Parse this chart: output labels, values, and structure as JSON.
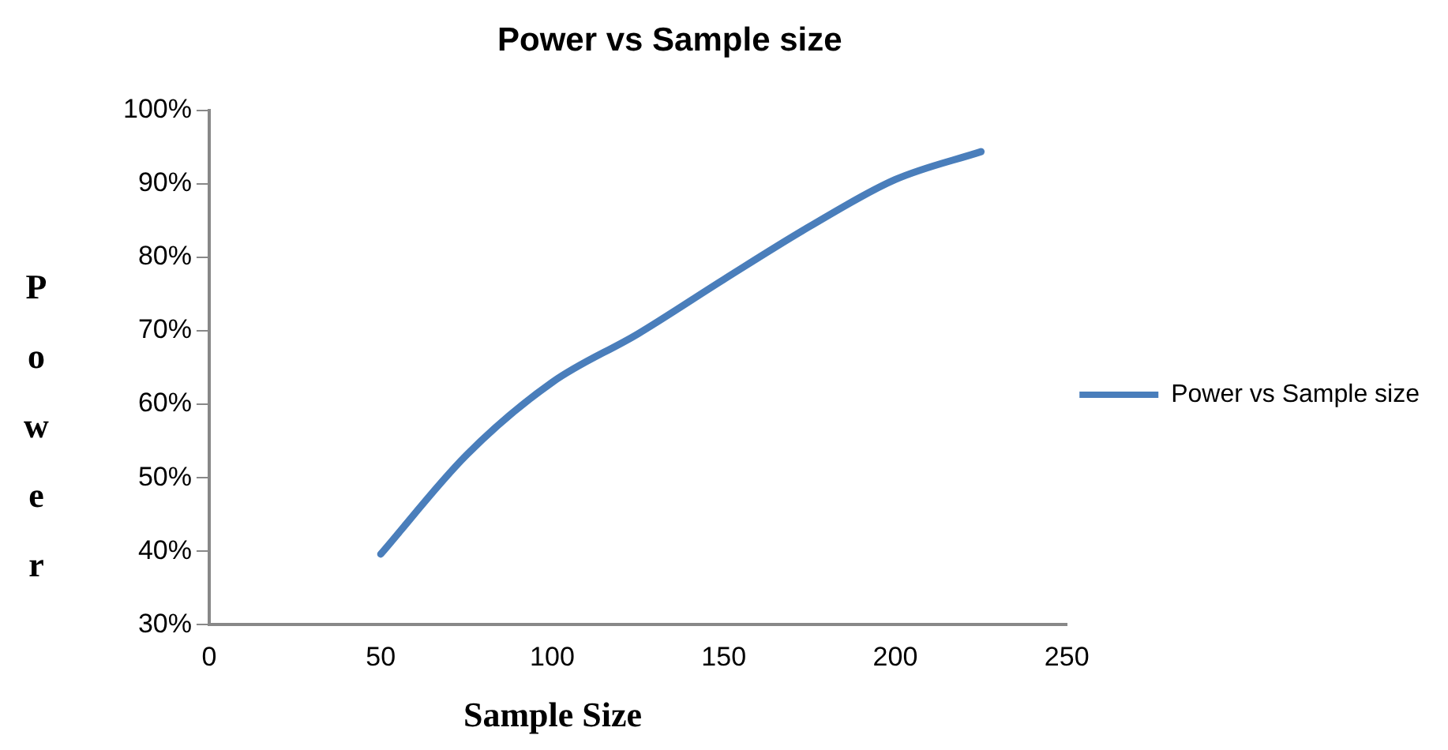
{
  "chart_data": {
    "type": "line",
    "title": "Power vs Sample size",
    "xlabel": "Sample Size",
    "ylabel": "Power",
    "series": [
      {
        "name": "Power vs Sample size",
        "color": "#4a7ebb",
        "x": [
          50,
          75,
          100,
          125,
          150,
          175,
          200,
          225
        ],
        "values": [
          39.6,
          53.1,
          63.0,
          69.6,
          77.0,
          84.2,
          90.6,
          94.4
        ]
      }
    ],
    "xlim": [
      0,
      250
    ],
    "xticks": [
      0,
      50,
      100,
      150,
      200,
      250
    ],
    "ylim": [
      30,
      100
    ],
    "yticks": [
      {
        "value": 30,
        "label": "30%"
      },
      {
        "value": 40,
        "label": "40%"
      },
      {
        "value": 50,
        "label": "50%"
      },
      {
        "value": 60,
        "label": "60%"
      },
      {
        "value": 70,
        "label": "70%"
      },
      {
        "value": 80,
        "label": "80%"
      },
      {
        "value": 90,
        "label": "90%"
      },
      {
        "value": 100,
        "label": "100%"
      }
    ],
    "grid": false,
    "legend": "right",
    "marker": "none",
    "line_style": "solid"
  }
}
